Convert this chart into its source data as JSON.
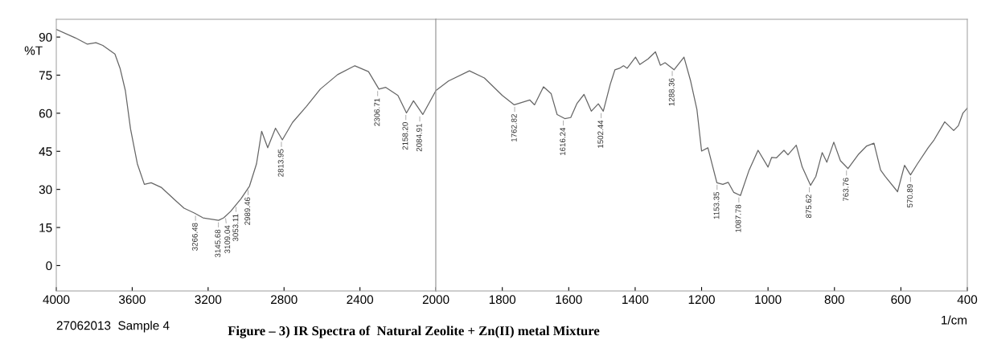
{
  "chart_data": [
    {
      "type": "line",
      "ylabel": "%T",
      "xlim": [
        4000,
        2000
      ],
      "xticks": [
        4000,
        3600,
        3200,
        2800,
        2400,
        2000
      ],
      "ylim": [
        -10,
        97
      ],
      "yticks": [
        0,
        15,
        30,
        45,
        60,
        75,
        90
      ],
      "grid": false,
      "x": [
        4000,
        3900,
        3836,
        3791,
        3755,
        3691,
        3664,
        3636,
        3609,
        3573,
        3536,
        3500,
        3445,
        3373,
        3327,
        3273,
        3227,
        3145,
        3118,
        3082,
        3027,
        2982,
        2945,
        2918,
        2886,
        2845,
        2809,
        2755,
        2682,
        2609,
        2518,
        2427,
        2355,
        2300,
        2264,
        2200,
        2155,
        2118,
        2069,
        2000
      ],
      "series": [
        {
          "color": "#666666",
          "values": [
            93.0,
            89.7,
            87.2,
            87.8,
            86.7,
            83.3,
            77.7,
            68.9,
            53.9,
            40.1,
            32.0,
            32.6,
            30.7,
            25.7,
            22.6,
            20.7,
            18.8,
            17.8,
            18.8,
            21.3,
            26.3,
            31.3,
            40.1,
            52.9,
            46.4,
            54.1,
            49.5,
            56.4,
            62.7,
            69.5,
            75.2,
            78.7,
            76.4,
            69.5,
            70.2,
            67.0,
            60.1,
            64.9,
            59.5,
            68.9
          ]
        }
      ],
      "annotations": [
        {
          "text": "3266.48",
          "x": 3266.48,
          "y": 20.4
        },
        {
          "text": "3145.68",
          "x": 3145.68,
          "y": 17.8
        },
        {
          "text": "3109.04",
          "x": 3109.04,
          "y": 19.4
        },
        {
          "text": "3053.11",
          "x": 3053.11,
          "y": 23.9
        },
        {
          "text": "2989.46",
          "x": 2989.46,
          "y": 30.5
        },
        {
          "text": "2813.95",
          "x": 2813.95,
          "y": 49.5
        },
        {
          "text": "2306.71",
          "x": 2306.71,
          "y": 69.5
        },
        {
          "text": "2158.20",
          "x": 2158.2,
          "y": 60.1
        },
        {
          "text": "2084.91",
          "x": 2084.91,
          "y": 59.5
        },
        "27062013  Sample 4"
      ]
    },
    {
      "type": "line",
      "xlabel": "1/cm",
      "title": "Figure – 3) IR Spectra of  Natural Zeolite + Zn(II) metal Mixture",
      "xlim": [
        2000,
        400
      ],
      "xticks": [
        1800,
        1600,
        1400,
        1200,
        1000,
        800,
        600,
        400
      ],
      "ylim": [
        -10,
        97
      ],
      "tick_labels": "x",
      "grid": false,
      "x": [
        2000,
        1962,
        1899,
        1854,
        1800,
        1764,
        1717,
        1703,
        1676,
        1653,
        1635,
        1612,
        1594,
        1575,
        1554,
        1532,
        1511,
        1496,
        1475,
        1461,
        1447,
        1435,
        1424,
        1399,
        1386,
        1361,
        1339,
        1324,
        1310,
        1283,
        1253,
        1233,
        1214,
        1200,
        1181,
        1154,
        1136,
        1120,
        1103,
        1083,
        1057,
        1030,
        1000,
        989,
        975,
        952,
        940,
        915,
        897,
        872,
        856,
        837,
        823,
        802,
        782,
        759,
        727,
        704,
        681,
        661,
        647,
        610,
        589,
        571,
        550,
        518,
        500,
        468,
        441,
        427,
        413,
        400
      ],
      "series": [
        {
          "color": "#666666",
          "values": [
            68.9,
            72.7,
            76.7,
            73.9,
            67.0,
            63.3,
            65.2,
            63.3,
            70.4,
            67.7,
            59.5,
            57.9,
            58.3,
            63.9,
            67.4,
            60.8,
            63.7,
            60.8,
            71.4,
            77.1,
            77.7,
            78.7,
            77.7,
            82.1,
            79.2,
            81.4,
            84.2,
            78.9,
            79.9,
            77.1,
            82.1,
            72.7,
            61.4,
            45.1,
            46.4,
            32.6,
            32.0,
            32.8,
            28.8,
            27.6,
            37.6,
            45.4,
            38.8,
            42.6,
            42.4,
            45.4,
            43.6,
            47.4,
            38.8,
            31.6,
            35.1,
            44.5,
            40.7,
            48.6,
            41.3,
            38.2,
            43.9,
            47.0,
            48.2,
            37.6,
            35.1,
            29.1,
            39.5,
            35.7,
            40.1,
            46.4,
            49.5,
            56.6,
            53.2,
            55.1,
            60.1,
            62.0
          ]
        }
      ],
      "annotations": [
        {
          "text": "1762.82",
          "x": 1762.82,
          "y": 63.3
        },
        {
          "text": "1616.24",
          "x": 1616.24,
          "y": 57.9
        },
        {
          "text": "1502.44",
          "x": 1502.44,
          "y": 60.8
        },
        {
          "text": "1288.36",
          "x": 1288.36,
          "y": 77.4
        },
        {
          "text": "1153.35",
          "x": 1153.35,
          "y": 32.6
        },
        {
          "text": "1087.78",
          "x": 1087.78,
          "y": 27.6
        },
        {
          "text": "875.62",
          "x": 875.62,
          "y": 31.6
        },
        {
          "text": "763.76",
          "x": 763.76,
          "y": 38.2
        },
        {
          "text": "570.89",
          "x": 570.89,
          "y": 35.7
        }
      ]
    }
  ]
}
